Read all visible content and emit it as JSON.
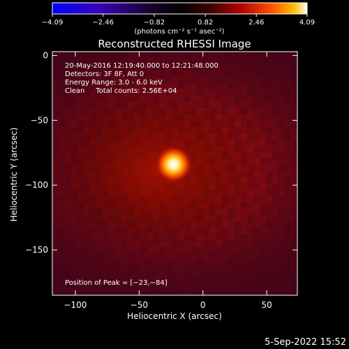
{
  "chart_data": {
    "type": "heatmap",
    "title": "Reconstructed RHESSI Image",
    "xlabel": "Heliocentric X (arcsec)",
    "ylabel": "Heliocentric Y (arcsec)",
    "xlim": [
      -118,
      74
    ],
    "ylim": [
      -185,
      3
    ],
    "x_ticks": [
      -100,
      -50,
      0,
      50
    ],
    "y_ticks": [
      0,
      -50,
      -100,
      -150
    ],
    "x_tick_labels": [
      "−100",
      "−50",
      "0",
      "50"
    ],
    "y_tick_labels": [
      "0",
      "−50",
      "−100",
      "−150"
    ],
    "colorbar": {
      "range": [
        -4.09,
        4.09
      ],
      "ticks": [
        -4.09,
        -2.46,
        -0.82,
        0.82,
        2.46,
        4.09
      ],
      "tick_labels": [
        "−4.09",
        "−2.46",
        "−0.82",
        "0.82",
        "2.46",
        "4.09"
      ],
      "label": "(photons cm⁻² s⁻¹ asec⁻²)",
      "colors": [
        "#0000ff",
        "#3a00b8",
        "#1a0030",
        "#000000",
        "#400000",
        "#b00000",
        "#ff5000",
        "#ffc000",
        "#ffffff"
      ]
    },
    "peak": {
      "x": -23,
      "y": -84,
      "value": 4.09
    },
    "annotations": [
      "20-May-2016 12:19:40.000 to 12:21:48.000",
      "Detectors: 3F 8F, Att 0",
      "Energy Range: 3.0 - 6.0 keV",
      "Clean     Total counts: 2.56E+04"
    ],
    "peak_label": "Position of Peak = [−23,−84]"
  },
  "footer": {
    "date": "5-Sep-2022 15:52"
  }
}
